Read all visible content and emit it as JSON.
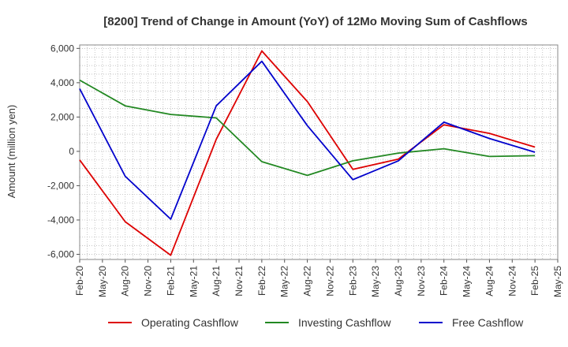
{
  "chart_data": {
    "type": "line",
    "title": "[8200]  Trend of Change in Amount (YoY) of 12Mo Moving Sum of Cashflows",
    "xlabel": "",
    "ylabel": "Amount (million yen)",
    "ylim": [
      -6300,
      6200
    ],
    "yticks": [
      -6000,
      -4000,
      -2000,
      0,
      2000,
      4000,
      6000
    ],
    "ytick_labels": [
      "-6,000",
      "-4,000",
      "-2,000",
      "0",
      "2,000",
      "4,000",
      "6,000"
    ],
    "x_tick_labels": [
      "Feb-20",
      "May-20",
      "Aug-20",
      "Nov-20",
      "Feb-21",
      "May-21",
      "Aug-21",
      "Nov-21",
      "Feb-22",
      "May-22",
      "Aug-22",
      "Nov-22",
      "Feb-23",
      "May-23",
      "Aug-23",
      "Nov-23",
      "Feb-24",
      "May-24",
      "Aug-24",
      "Nov-24",
      "Feb-25",
      "May-25"
    ],
    "x_points": [
      "Feb-20",
      "Aug-20",
      "Feb-21",
      "Aug-21",
      "Feb-22",
      "Aug-22",
      "Feb-23",
      "Aug-23",
      "Feb-24",
      "Aug-24",
      "Feb-25"
    ],
    "grid": true,
    "legend_position": "bottom",
    "series": [
      {
        "name": "Operating Cashflow",
        "color": "#dd0000",
        "values": [
          -500,
          -4100,
          -6050,
          700,
          5850,
          2900,
          -1050,
          -450,
          1550,
          1050,
          250
        ]
      },
      {
        "name": "Investing Cashflow",
        "color": "#228822",
        "values": [
          4150,
          2650,
          2150,
          1950,
          -600,
          -1400,
          -550,
          -100,
          150,
          -300,
          -250
        ]
      },
      {
        "name": "Free Cashflow",
        "color": "#0000cc",
        "values": [
          3650,
          -1450,
          -3950,
          2650,
          5250,
          1500,
          -1650,
          -550,
          1700,
          750,
          -50
        ]
      }
    ]
  }
}
